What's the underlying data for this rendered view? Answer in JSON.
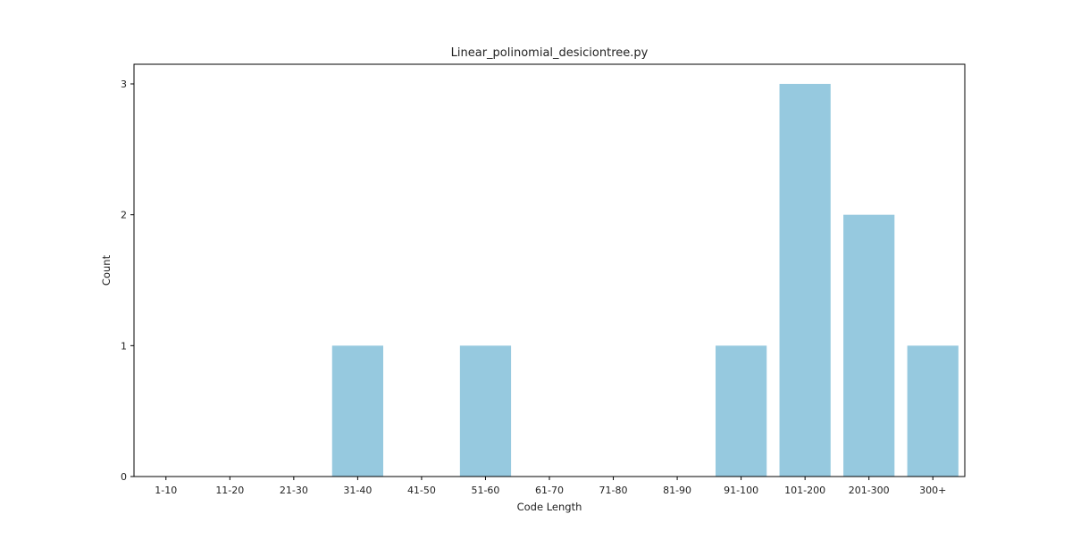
{
  "chart_data": {
    "type": "bar",
    "title": "Linear_polinomial_desiciontree.py",
    "xlabel": "Code Length",
    "ylabel": "Count",
    "categories": [
      "1-10",
      "11-20",
      "21-30",
      "31-40",
      "41-50",
      "51-60",
      "61-70",
      "71-80",
      "81-90",
      "91-100",
      "101-200",
      "201-300",
      "300+"
    ],
    "values": [
      0,
      0,
      0,
      1,
      0,
      1,
      0,
      0,
      0,
      1,
      3,
      2,
      1
    ],
    "ylim": [
      0,
      3.15
    ],
    "yticks": [
      0,
      1,
      2,
      3
    ],
    "bar_color": "#96c9df",
    "grid": false,
    "legend": "none"
  }
}
